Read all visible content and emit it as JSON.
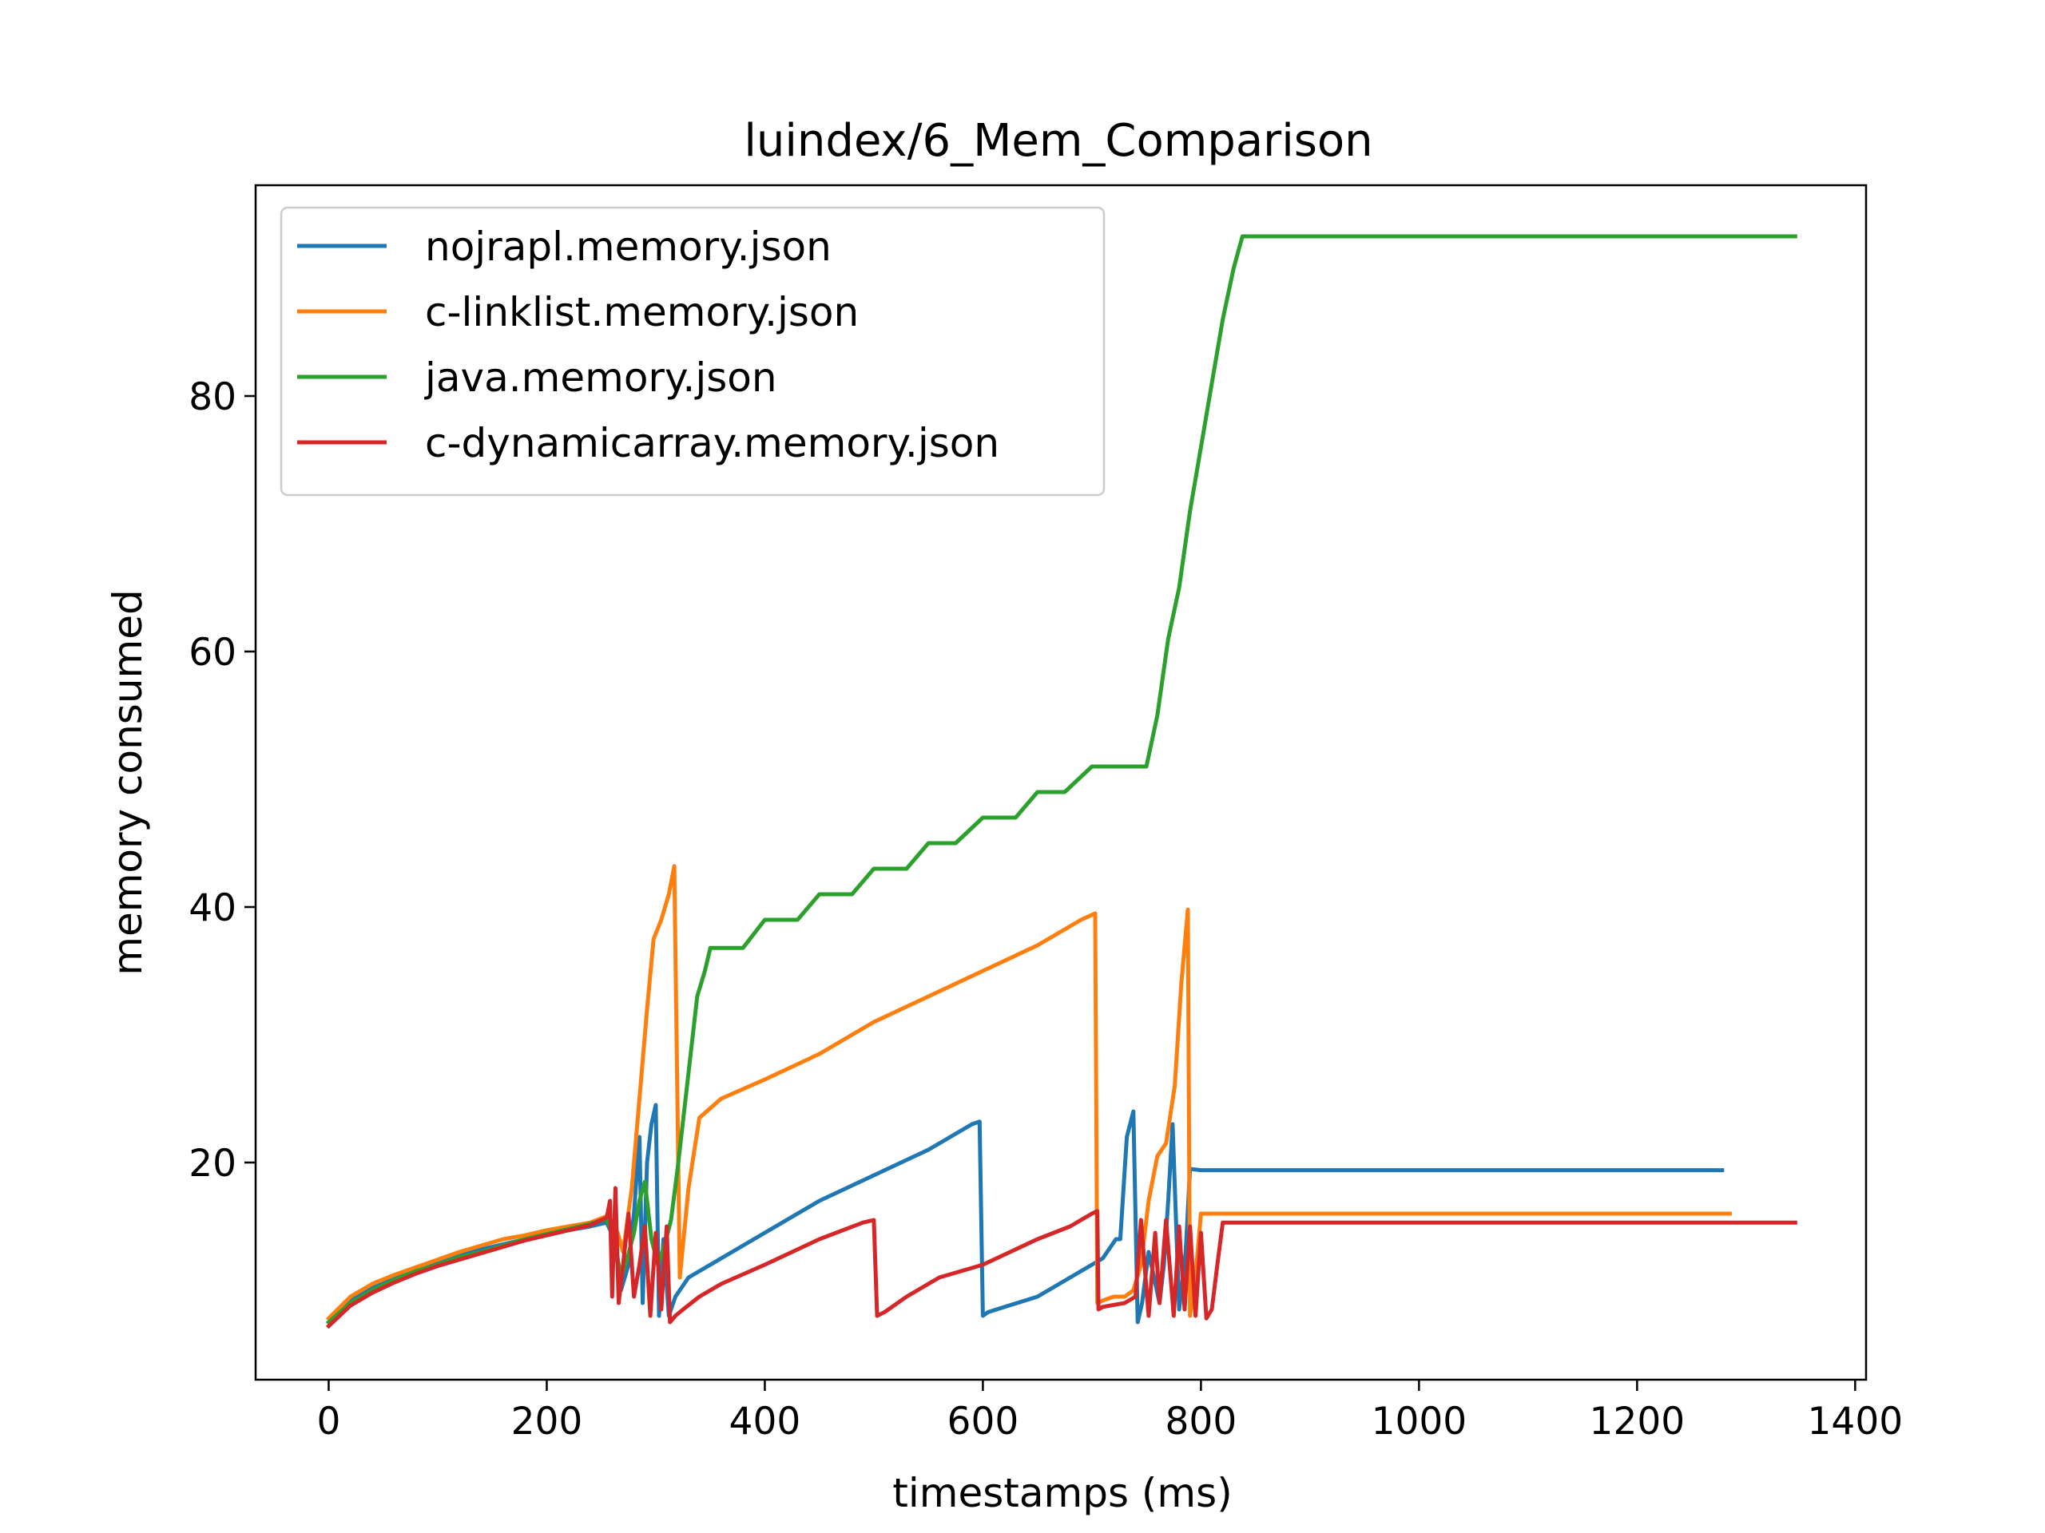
{
  "chart_data": {
    "type": "line",
    "title": "luindex/6_Mem_Comparison",
    "xlabel": "timestamps (ms)",
    "ylabel": "memory consumed",
    "xlim": [
      -67,
      1410
    ],
    "ylim": [
      3.0,
      96.5
    ],
    "xticks": [
      0,
      200,
      400,
      600,
      800,
      1000,
      1200,
      1400
    ],
    "yticks": [
      20,
      40,
      60,
      80
    ],
    "grid": false,
    "legend_position": "upper-left",
    "series": [
      {
        "name": "nojrapl.memory.json",
        "color": "#1f77b4",
        "x": [
          0,
          20,
          40,
          60,
          80,
          100,
          120,
          140,
          160,
          180,
          200,
          220,
          240,
          255,
          262,
          268,
          275,
          280,
          285,
          288,
          292,
          296,
          300,
          303,
          307,
          312,
          318,
          330,
          400,
          450,
          500,
          550,
          590,
          597,
          600,
          605,
          650,
          670,
          700,
          710,
          722,
          726,
          732,
          738,
          742,
          746,
          752,
          762,
          766,
          770,
          774,
          780,
          786,
          790,
          800,
          1000,
          1200,
          1278
        ],
        "y": [
          7.5,
          9.2,
          10.3,
          11.0,
          11.7,
          12.2,
          12.8,
          13.2,
          13.6,
          14.0,
          14.4,
          14.7,
          15.0,
          15.3,
          14.0,
          10.0,
          12.0,
          16.0,
          22.0,
          9.0,
          20.0,
          23.0,
          24.5,
          8.0,
          14.0,
          8.0,
          9.5,
          11.0,
          14.5,
          17.0,
          19.0,
          21.0,
          23.0,
          23.2,
          8.0,
          8.3,
          9.5,
          10.5,
          12.0,
          12.5,
          14.0,
          14.0,
          22.0,
          24.0,
          7.5,
          9.0,
          13.0,
          9.0,
          12.0,
          17.0,
          23.0,
          8.5,
          13.0,
          19.5,
          19.4,
          19.4,
          19.4,
          19.4
        ]
      },
      {
        "name": "c-linklist.memory.json",
        "color": "#ff7f0e",
        "x": [
          0,
          20,
          40,
          60,
          80,
          100,
          120,
          140,
          160,
          180,
          200,
          220,
          240,
          255,
          265,
          270,
          278,
          285,
          292,
          298,
          305,
          312,
          317,
          322,
          330,
          340,
          360,
          400,
          450,
          500,
          550,
          600,
          650,
          690,
          703,
          705,
          710,
          720,
          730,
          738,
          745,
          752,
          760,
          768,
          776,
          782,
          788,
          790,
          796,
          800,
          1000,
          1200,
          1285
        ],
        "y": [
          7.8,
          9.5,
          10.5,
          11.2,
          11.8,
          12.4,
          13.0,
          13.5,
          14.0,
          14.3,
          14.7,
          15.0,
          15.3,
          15.8,
          14.5,
          13.0,
          18.0,
          25.0,
          32.0,
          37.5,
          39.0,
          41.0,
          43.2,
          11.0,
          18.0,
          23.5,
          25.0,
          26.5,
          28.5,
          31.0,
          33.0,
          35.0,
          37.0,
          39.0,
          39.5,
          9.0,
          9.2,
          9.5,
          9.5,
          10.0,
          12.0,
          17.0,
          20.5,
          21.5,
          26.0,
          34.0,
          39.8,
          8.0,
          12.0,
          16.0,
          16.0,
          16.0,
          16.0
        ]
      },
      {
        "name": "java.memory.json",
        "color": "#2ca02c",
        "x": [
          0,
          20,
          40,
          60,
          80,
          100,
          120,
          140,
          160,
          180,
          200,
          220,
          240,
          255,
          262,
          268,
          274,
          280,
          285,
          290,
          296,
          302,
          308,
          314,
          320,
          326,
          332,
          338,
          345,
          350,
          360,
          380,
          400,
          430,
          450,
          480,
          500,
          530,
          550,
          575,
          600,
          630,
          650,
          675,
          700,
          720,
          750,
          760,
          770,
          780,
          790,
          800,
          810,
          820,
          830,
          838,
          850,
          900,
          1000,
          1200,
          1345
        ],
        "y": [
          7.5,
          9.0,
          10.0,
          10.8,
          11.5,
          12.0,
          12.6,
          13.0,
          13.5,
          14.0,
          14.4,
          14.8,
          15.2,
          15.6,
          14.0,
          11.0,
          12.5,
          14.5,
          17.0,
          18.5,
          14.0,
          12.0,
          13.5,
          15.5,
          19.5,
          24.0,
          28.5,
          33.0,
          35.0,
          36.8,
          36.8,
          36.8,
          39.0,
          39.0,
          41.0,
          41.0,
          43.0,
          43.0,
          45.0,
          45.0,
          47.0,
          47.0,
          49.0,
          49.0,
          51.0,
          51.0,
          51.0,
          55.0,
          61.0,
          65.0,
          71.0,
          76.0,
          81.0,
          86.0,
          90.0,
          92.5,
          92.5,
          92.5,
          92.5,
          92.5,
          92.5
        ]
      },
      {
        "name": "c-dynamicarray.memory.json",
        "color": "#d62728",
        "x": [
          0,
          20,
          40,
          60,
          80,
          100,
          120,
          140,
          160,
          180,
          200,
          220,
          240,
          255,
          258,
          260,
          263,
          266,
          270,
          275,
          280,
          285,
          290,
          295,
          300,
          305,
          310,
          313,
          318,
          325,
          340,
          360,
          400,
          450,
          490,
          500,
          503,
          510,
          530,
          560,
          600,
          650,
          680,
          700,
          705,
          706,
          710,
          730,
          740,
          745,
          752,
          758,
          762,
          768,
          775,
          780,
          785,
          790,
          795,
          800,
          805,
          810,
          815,
          820,
          900,
          1000,
          1200,
          1345
        ],
        "y": [
          7.2,
          8.8,
          9.8,
          10.6,
          11.3,
          11.9,
          12.4,
          12.9,
          13.4,
          13.9,
          14.3,
          14.7,
          15.1,
          15.7,
          17.0,
          9.5,
          18.0,
          9.0,
          12.0,
          16.0,
          9.5,
          12.0,
          15.0,
          8.0,
          14.5,
          8.5,
          15.0,
          7.5,
          8.0,
          8.5,
          9.5,
          10.5,
          12.0,
          14.0,
          15.3,
          15.5,
          8.0,
          8.3,
          9.5,
          11.0,
          12.0,
          14.0,
          15.0,
          16.0,
          16.2,
          8.5,
          8.7,
          9.0,
          9.5,
          15.5,
          8.0,
          14.5,
          9.0,
          15.5,
          8.0,
          15.0,
          8.5,
          15.0,
          8.0,
          14.5,
          7.8,
          8.5,
          12.0,
          15.3,
          15.3,
          15.3,
          15.3,
          15.3
        ]
      }
    ]
  }
}
